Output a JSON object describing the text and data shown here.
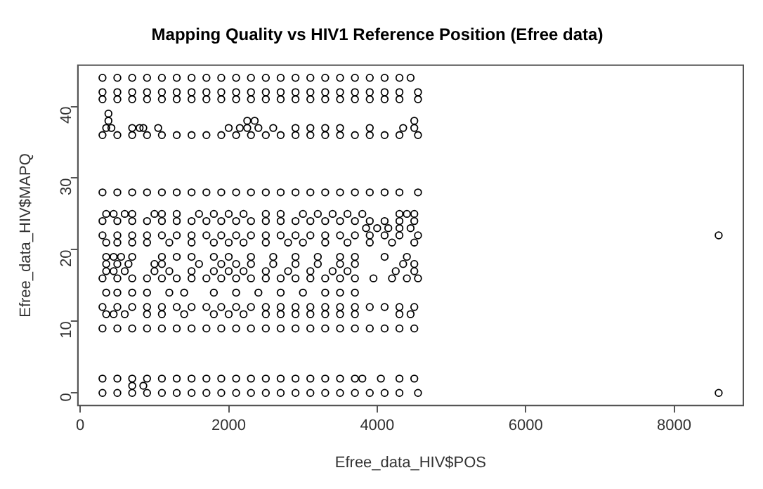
{
  "chart_data": {
    "type": "scatter",
    "title": "Mapping Quality vs HIV1 Reference Position (Efree data)",
    "xlabel": "Efree_data_HIV$POS",
    "ylabel": "Efree_data_HIV$MAPQ",
    "xlim": [
      -32,
      8932
    ],
    "ylim": [
      -1.76,
      45.76
    ],
    "xticks": [
      0,
      2000,
      4000,
      6000,
      8000
    ],
    "yticks": [
      0,
      10,
      20,
      30,
      40
    ],
    "grid": false,
    "legend": false,
    "marker": "circle",
    "series": [
      {
        "color": "#000000",
        "x": [
          300,
          500,
          700,
          900,
          1100,
          1300,
          1500,
          1700,
          1900,
          2100,
          2300,
          2500,
          2700,
          2900,
          3100,
          3300,
          3500,
          3700,
          3900,
          4100,
          4300,
          4550
        ],
        "values": [
          0,
          0,
          0,
          0,
          0,
          0,
          0,
          0,
          0,
          0,
          0,
          0,
          0,
          0,
          0,
          0,
          0,
          0,
          0,
          0,
          0,
          0
        ]
      },
      {
        "color": "#000000",
        "x": [
          300,
          500,
          700,
          900,
          1100,
          1300,
          1500,
          1700,
          1900,
          2100,
          2300,
          2500,
          2700,
          2900,
          3100,
          3300,
          3500,
          3700,
          3800,
          4050,
          4300,
          4500
        ],
        "values": [
          2,
          2,
          2,
          2,
          2,
          2,
          2,
          2,
          2,
          2,
          2,
          2,
          2,
          2,
          2,
          2,
          2,
          2,
          2,
          2,
          2,
          2
        ]
      },
      {
        "color": "#000000",
        "x": [
          700,
          850
        ],
        "values": [
          1,
          1
        ]
      },
      {
        "color": "#000000",
        "x": [
          300,
          500,
          700,
          900,
          1100,
          1300,
          1500,
          1700,
          1900,
          2100,
          2300,
          2500,
          2700,
          2900,
          3100,
          3300,
          3500,
          3700,
          3900,
          4100,
          4300,
          4500
        ],
        "values": [
          9,
          9,
          9,
          9,
          9,
          9,
          9,
          9,
          9,
          9,
          9,
          9,
          9,
          9,
          9,
          9,
          9,
          9,
          9,
          9,
          9,
          9
        ]
      },
      {
        "color": "#000000",
        "x": [
          350,
          450,
          600,
          900,
          1100,
          1400,
          1800,
          2000,
          2200,
          2500,
          2700,
          2900,
          3100,
          3300,
          3500,
          3700,
          4300,
          4450
        ],
        "values": [
          11,
          11,
          11,
          11,
          11,
          11,
          11,
          11,
          11,
          11,
          11,
          11,
          11,
          11,
          11,
          11,
          11,
          11
        ]
      },
      {
        "color": "#000000",
        "x": [
          300,
          500,
          700,
          900,
          1100,
          1300,
          1500,
          1700,
          1900,
          2100,
          2300,
          2500,
          2700,
          2900,
          3100,
          3300,
          3500,
          3700,
          3900,
          4100,
          4300,
          4500
        ],
        "values": [
          12,
          12,
          12,
          12,
          12,
          12,
          12,
          12,
          12,
          12,
          12,
          12,
          12,
          12,
          12,
          12,
          12,
          12,
          12,
          12,
          12,
          12
        ]
      },
      {
        "color": "#000000",
        "x": [
          350,
          500,
          700,
          900,
          1200,
          1400,
          1800,
          2100,
          2400,
          2700,
          3000,
          3300,
          3500,
          3700
        ],
        "values": [
          14,
          14,
          14,
          14,
          14,
          14,
          14,
          14,
          14,
          14,
          14,
          14,
          14,
          14
        ]
      },
      {
        "color": "#000000",
        "x": [
          300,
          500,
          700,
          900,
          1100,
          1300,
          1500,
          1700,
          1900,
          2100,
          2300,
          2500,
          2700,
          2900,
          3100,
          3300,
          3500,
          3700,
          3950,
          4200,
          4400,
          4550
        ],
        "values": [
          16,
          16,
          16,
          16,
          16,
          16,
          16,
          16,
          16,
          16,
          16,
          16,
          16,
          16,
          16,
          16,
          16,
          16,
          16,
          16,
          16,
          16
        ]
      },
      {
        "color": "#000000",
        "x": [
          350,
          450,
          600,
          1000,
          1200,
          1500,
          1800,
          2000,
          2200,
          2500,
          2800,
          3100,
          3400,
          3600,
          4250,
          4500
        ],
        "values": [
          17,
          17,
          17,
          17,
          17,
          17,
          17,
          17,
          17,
          17,
          17,
          17,
          17,
          17,
          17,
          17
        ]
      },
      {
        "color": "#000000",
        "x": [
          350,
          500,
          650,
          1000,
          1100,
          1600,
          1900,
          2100,
          2300,
          2600,
          2900,
          3200,
          3500,
          3700,
          4350,
          4500
        ],
        "values": [
          18,
          18,
          18,
          18,
          18,
          18,
          18,
          18,
          18,
          18,
          18,
          18,
          18,
          18,
          18,
          18
        ]
      },
      {
        "color": "#000000",
        "x": [
          350,
          450,
          550,
          700,
          1100,
          1300,
          1500,
          1800,
          2000,
          2300,
          2600,
          2900,
          3200,
          3500,
          3700,
          4100,
          4400
        ],
        "values": [
          19,
          19,
          19,
          19,
          19,
          19,
          19,
          19,
          19,
          19,
          19,
          19,
          19,
          19,
          19,
          19,
          19
        ]
      },
      {
        "color": "#000000",
        "x": [
          350,
          500,
          700,
          900,
          1200,
          1500,
          1800,
          2000,
          2200,
          2500,
          2800,
          3000,
          3300,
          3600,
          3900,
          4200,
          4500
        ],
        "values": [
          21,
          21,
          21,
          21,
          21,
          21,
          21,
          21,
          21,
          21,
          21,
          21,
          21,
          21,
          21,
          21,
          21
        ]
      },
      {
        "color": "#000000",
        "x": [
          300,
          500,
          700,
          900,
          1100,
          1300,
          1500,
          1700,
          1900,
          2100,
          2300,
          2500,
          2700,
          2900,
          3100,
          3300,
          3500,
          3700,
          3900,
          4100,
          4300,
          4550
        ],
        "values": [
          22,
          22,
          22,
          22,
          22,
          22,
          22,
          22,
          22,
          22,
          22,
          22,
          22,
          22,
          22,
          22,
          22,
          22,
          22,
          22,
          22,
          22
        ]
      },
      {
        "color": "#000000",
        "x": [
          3850,
          4000,
          4150,
          4300,
          4450
        ],
        "values": [
          23,
          23,
          23,
          23,
          23
        ]
      },
      {
        "color": "#000000",
        "x": [
          300,
          500,
          700,
          900,
          1100,
          1300,
          1500,
          1700,
          1900,
          2100,
          2300,
          2500,
          2700,
          2900,
          3100,
          3300,
          3500,
          3700,
          3900,
          4100,
          4300,
          4500
        ],
        "values": [
          24,
          24,
          24,
          24,
          24,
          24,
          24,
          24,
          24,
          24,
          24,
          24,
          24,
          24,
          24,
          24,
          24,
          24,
          24,
          24,
          24,
          24
        ]
      },
      {
        "color": "#000000",
        "x": [
          350,
          450,
          600,
          700,
          1000,
          1100,
          1300,
          1600,
          1800,
          2000,
          2200,
          2500,
          2700,
          3000,
          3200,
          3400,
          3600,
          3800,
          4300,
          4400,
          4500
        ],
        "values": [
          25,
          25,
          25,
          25,
          25,
          25,
          25,
          25,
          25,
          25,
          25,
          25,
          25,
          25,
          25,
          25,
          25,
          25,
          25,
          25,
          25
        ]
      },
      {
        "color": "#000000",
        "x": [
          300,
          500,
          700,
          900,
          1100,
          1300,
          1500,
          1700,
          1900,
          2100,
          2300,
          2500,
          2700,
          2900,
          3100,
          3300,
          3500,
          3700,
          3900,
          4100,
          4300,
          4550
        ],
        "values": [
          28,
          28,
          28,
          28,
          28,
          28,
          28,
          28,
          28,
          28,
          28,
          28,
          28,
          28,
          28,
          28,
          28,
          28,
          28,
          28,
          28,
          28
        ]
      },
      {
        "color": "#000000",
        "x": [
          300,
          500,
          700,
          900,
          1100,
          1300,
          1500,
          1700,
          1900,
          2100,
          2300,
          2500,
          2700,
          2900,
          3100,
          3300,
          3500,
          3700,
          3900,
          4100,
          4300,
          4550
        ],
        "values": [
          36,
          36,
          36,
          36,
          36,
          36,
          36,
          36,
          36,
          36,
          36,
          36,
          36,
          36,
          36,
          36,
          36,
          36,
          36,
          36,
          36,
          36
        ]
      },
      {
        "color": "#000000",
        "x": [
          350,
          420,
          700,
          800,
          850,
          1050,
          2000,
          2150,
          2250,
          2400,
          2600,
          2900,
          3100,
          3300,
          3500,
          3900,
          4350,
          4500
        ],
        "values": [
          37,
          37,
          37,
          37,
          37,
          37,
          37,
          37,
          37,
          37,
          37,
          37,
          37,
          37,
          37,
          37,
          37,
          37
        ]
      },
      {
        "color": "#000000",
        "x": [
          380,
          2250,
          2350,
          4500
        ],
        "values": [
          38,
          38,
          38,
          38
        ]
      },
      {
        "color": "#000000",
        "x": [
          380
        ],
        "values": [
          39
        ]
      },
      {
        "color": "#000000",
        "x": [
          300,
          500,
          700,
          900,
          1100,
          1300,
          1500,
          1700,
          1900,
          2100,
          2300,
          2500,
          2700,
          2900,
          3100,
          3300,
          3500,
          3700,
          3900,
          4100,
          4300,
          4550
        ],
        "values": [
          41,
          41,
          41,
          41,
          41,
          41,
          41,
          41,
          41,
          41,
          41,
          41,
          41,
          41,
          41,
          41,
          41,
          41,
          41,
          41,
          41,
          41
        ]
      },
      {
        "color": "#000000",
        "x": [
          300,
          500,
          700,
          900,
          1100,
          1300,
          1500,
          1700,
          1900,
          2100,
          2300,
          2500,
          2700,
          2900,
          3100,
          3300,
          3500,
          3700,
          3900,
          4100,
          4300,
          4550
        ],
        "values": [
          42,
          42,
          42,
          42,
          42,
          42,
          42,
          42,
          42,
          42,
          42,
          42,
          42,
          42,
          42,
          42,
          42,
          42,
          42,
          42,
          42,
          42
        ]
      },
      {
        "color": "#000000",
        "x": [
          300,
          500,
          700,
          900,
          1100,
          1300,
          1500,
          1700,
          1900,
          2100,
          2300,
          2500,
          2700,
          2900,
          3100,
          3300,
          3500,
          3700,
          3900,
          4100,
          4300,
          4450
        ],
        "values": [
          44,
          44,
          44,
          44,
          44,
          44,
          44,
          44,
          44,
          44,
          44,
          44,
          44,
          44,
          44,
          44,
          44,
          44,
          44,
          44,
          44,
          44
        ]
      },
      {
        "color": "#000000",
        "x": [
          8600,
          8600
        ],
        "values": [
          22,
          0
        ]
      }
    ]
  }
}
